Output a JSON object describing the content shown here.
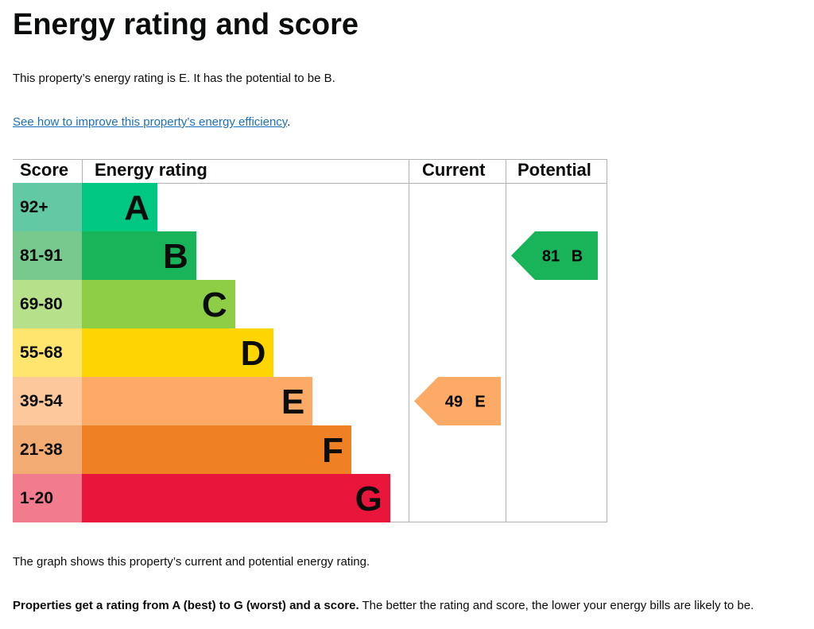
{
  "header": {
    "title": "Energy rating and score"
  },
  "intro": "This property’s energy rating is E. It has the potential to be B.",
  "link": {
    "text": "See how to improve this property’s energy efficiency",
    "suffix": "."
  },
  "table": {
    "headers": {
      "score": "Score",
      "rating": "Energy rating",
      "current": "Current",
      "potential": "Potential"
    },
    "bands": [
      {
        "score": "92+",
        "letter": "A",
        "color": "#00c781",
        "cell_color": "#63c9a4"
      },
      {
        "score": "81-91",
        "letter": "B",
        "color": "#19b459",
        "cell_color": "#77c98e"
      },
      {
        "score": "69-80",
        "letter": "C",
        "color": "#8dce46",
        "cell_color": "#b6e08a"
      },
      {
        "score": "55-68",
        "letter": "D",
        "color": "#ffd500",
        "cell_color": "#ffe46d"
      },
      {
        "score": "39-54",
        "letter": "E",
        "color": "#fcaa65",
        "cell_color": "#fdc89c"
      },
      {
        "score": "21-38",
        "letter": "F",
        "color": "#ef8023",
        "cell_color": "#f3ab74"
      },
      {
        "score": "1-20",
        "letter": "G",
        "color": "#e9153b",
        "cell_color": "#f37b8e"
      }
    ],
    "current": {
      "score": "49",
      "letter": "E"
    },
    "potential": {
      "score": "81",
      "letter": "B"
    }
  },
  "footer": {
    "graph_note": "The graph shows this property’s current and potential energy rating.",
    "rating_note_bold": "Properties get a rating from A (best) to G (worst) and a score.",
    "rating_note_rest": " The better the rating and score, the lower your energy bills are likely to be."
  }
}
